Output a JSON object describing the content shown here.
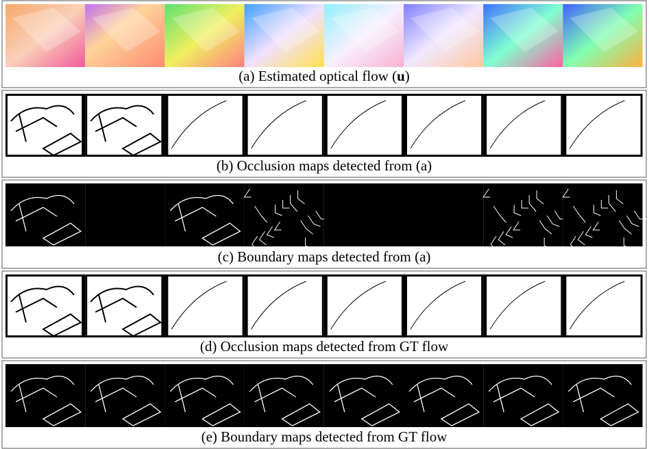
{
  "figure": {
    "panels": [
      {
        "caption": [
          "(a) Estimated optical flow (",
          "u",
          ")"
        ]
      },
      {
        "caption": [
          "(b) Occlusion maps detected from (a)"
        ]
      },
      {
        "caption": [
          "(c) Boundary maps detected from (a)"
        ]
      },
      {
        "caption": [
          "(d) Occlusion maps detected from GT flow"
        ]
      },
      {
        "caption": [
          "(e) Boundary maps detected from GT flow"
        ]
      }
    ]
  }
}
